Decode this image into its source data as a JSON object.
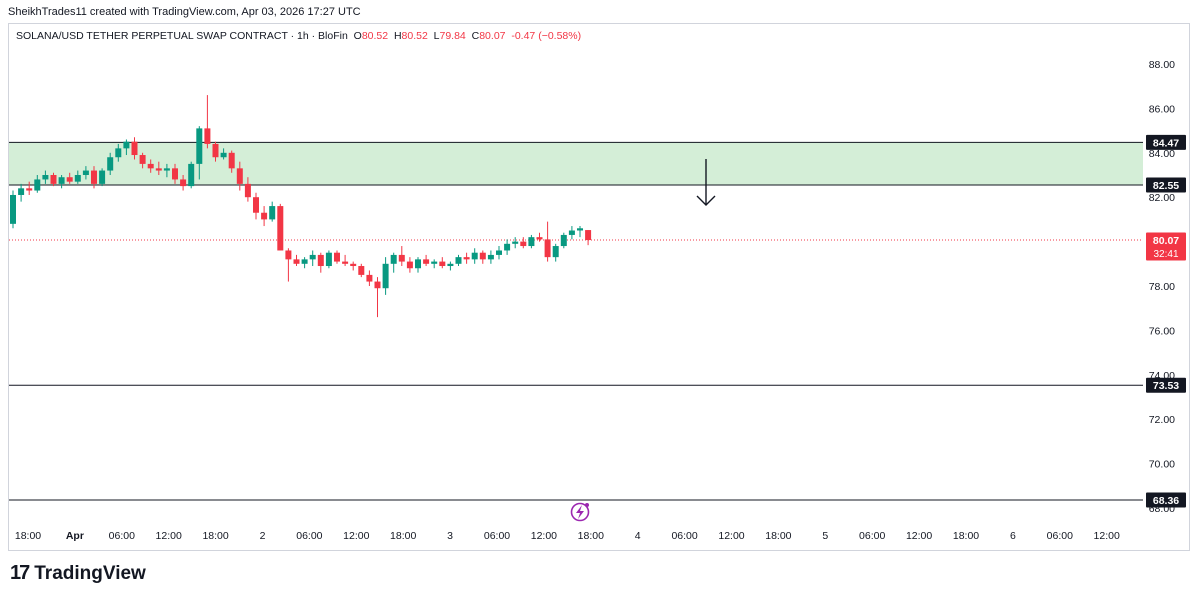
{
  "header": {
    "credit": "SheikhTrades11 created with TradingView.com, Apr 03, 2026 17:27 UTC"
  },
  "legend": {
    "symbol": "SOLANA/USD TETHER PERPETUAL SWAP CONTRACT · 1h · BloFin",
    "o_label": "O",
    "o": "80.52",
    "h_label": "H",
    "h": "80.52",
    "l_label": "L",
    "l": "79.84",
    "c_label": "C",
    "c": "80.07",
    "change": "-0.47 (−0.58%)"
  },
  "colors": {
    "up": "#089981",
    "down": "#f23645",
    "zone": "#d4eed7",
    "line": "#131722",
    "last": "#f23645",
    "icon": "#9c27b0"
  },
  "footer": {
    "brand_mark": "17",
    "brand_name": "TradingView"
  },
  "icons": {
    "flash": "flash-icon",
    "arrow": "down-arrow-icon"
  },
  "chart_data": {
    "type": "candlestick",
    "interval": "1h",
    "y_ticks": [
      "88.00",
      "86.00",
      "84.00",
      "82.00",
      "80.00",
      "78.00",
      "76.00",
      "74.00",
      "72.00",
      "70.00",
      "68.00"
    ],
    "x_ticks": [
      "18:00",
      "Apr",
      "06:00",
      "12:00",
      "18:00",
      "2",
      "06:00",
      "12:00",
      "18:00",
      "3",
      "06:00",
      "12:00",
      "18:00",
      "4",
      "06:00",
      "12:00",
      "18:00",
      "5",
      "06:00",
      "12:00",
      "18:00",
      "6",
      "06:00",
      "12:00"
    ],
    "ylim": [
      67.4,
      89.5
    ],
    "zone": {
      "top": 84.47,
      "bottom": 82.55,
      "top_label": "84.47",
      "bottom_label": "82.55"
    },
    "levels": [
      {
        "value": 73.53,
        "label": "73.53"
      },
      {
        "value": 68.36,
        "label": "68.36"
      }
    ],
    "last_price": {
      "value": 80.07,
      "label": "80.07",
      "countdown": "32:41"
    },
    "candles_ohlc": [
      [
        80.8,
        82.3,
        80.6,
        82.1
      ],
      [
        82.1,
        82.6,
        81.8,
        82.4
      ],
      [
        82.4,
        82.7,
        82.1,
        82.3
      ],
      [
        82.3,
        83.0,
        82.2,
        82.8
      ],
      [
        82.8,
        83.2,
        82.6,
        83.0
      ],
      [
        83.0,
        83.1,
        82.5,
        82.6
      ],
      [
        82.6,
        83.0,
        82.4,
        82.9
      ],
      [
        82.9,
        83.1,
        82.6,
        82.7
      ],
      [
        82.7,
        83.2,
        82.6,
        83.0
      ],
      [
        83.0,
        83.4,
        82.8,
        83.2
      ],
      [
        83.2,
        83.4,
        82.4,
        82.6
      ],
      [
        82.6,
        83.3,
        82.5,
        83.2
      ],
      [
        83.2,
        84.0,
        83.0,
        83.8
      ],
      [
        83.8,
        84.4,
        83.6,
        84.2
      ],
      [
        84.2,
        84.6,
        83.9,
        84.5
      ],
      [
        84.5,
        84.7,
        83.7,
        83.9
      ],
      [
        83.9,
        84.0,
        83.3,
        83.5
      ],
      [
        83.5,
        83.7,
        83.1,
        83.3
      ],
      [
        83.3,
        83.6,
        83.0,
        83.2
      ],
      [
        83.2,
        83.5,
        82.9,
        83.3
      ],
      [
        83.3,
        83.5,
        82.6,
        82.8
      ],
      [
        82.8,
        83.0,
        82.3,
        82.5
      ],
      [
        82.5,
        83.6,
        82.4,
        83.5
      ],
      [
        83.5,
        85.2,
        82.8,
        85.1
      ],
      [
        85.1,
        86.6,
        84.2,
        84.4
      ],
      [
        84.4,
        84.5,
        83.6,
        83.8
      ],
      [
        83.8,
        84.2,
        83.7,
        84.0
      ],
      [
        84.0,
        84.1,
        83.1,
        83.3
      ],
      [
        83.3,
        83.6,
        82.3,
        82.6
      ],
      [
        82.6,
        82.9,
        81.8,
        82.0
      ],
      [
        82.0,
        82.2,
        81.0,
        81.3
      ],
      [
        81.3,
        81.6,
        80.7,
        81.0
      ],
      [
        81.0,
        81.8,
        80.9,
        81.6
      ],
      [
        81.6,
        81.7,
        79.6,
        79.6
      ],
      [
        79.6,
        79.7,
        78.2,
        79.2
      ],
      [
        79.2,
        79.4,
        78.9,
        79.0
      ],
      [
        79.0,
        79.3,
        78.8,
        79.2
      ],
      [
        79.2,
        79.6,
        78.9,
        79.4
      ],
      [
        79.4,
        79.5,
        78.6,
        78.9
      ],
      [
        78.9,
        79.6,
        78.8,
        79.5
      ],
      [
        79.5,
        79.6,
        79.0,
        79.1
      ],
      [
        79.1,
        79.4,
        78.9,
        79.0
      ],
      [
        79.0,
        79.1,
        78.7,
        78.9
      ],
      [
        78.9,
        79.0,
        78.4,
        78.5
      ],
      [
        78.5,
        78.7,
        78.0,
        78.2
      ],
      [
        78.2,
        78.4,
        76.6,
        77.9
      ],
      [
        77.9,
        79.3,
        77.6,
        79.0
      ],
      [
        79.0,
        79.5,
        78.6,
        79.4
      ],
      [
        79.4,
        79.8,
        78.9,
        79.1
      ],
      [
        79.1,
        79.3,
        78.6,
        78.8
      ],
      [
        78.8,
        79.3,
        78.6,
        79.2
      ],
      [
        79.2,
        79.4,
        78.9,
        79.0
      ],
      [
        79.0,
        79.2,
        78.8,
        79.1
      ],
      [
        79.1,
        79.3,
        78.8,
        78.9
      ],
      [
        78.9,
        79.1,
        78.7,
        79.0
      ],
      [
        79.0,
        79.4,
        78.9,
        79.3
      ],
      [
        79.3,
        79.5,
        79.0,
        79.2
      ],
      [
        79.2,
        79.7,
        79.0,
        79.5
      ],
      [
        79.5,
        79.6,
        79.0,
        79.2
      ],
      [
        79.2,
        79.6,
        79.0,
        79.4
      ],
      [
        79.4,
        79.8,
        79.2,
        79.6
      ],
      [
        79.6,
        80.1,
        79.4,
        79.9
      ],
      [
        79.9,
        80.2,
        79.7,
        80.0
      ],
      [
        80.0,
        80.2,
        79.7,
        79.8
      ],
      [
        79.8,
        80.3,
        79.7,
        80.2
      ],
      [
        80.2,
        80.4,
        80.0,
        80.1
      ],
      [
        80.1,
        80.9,
        79.1,
        79.3
      ],
      [
        79.3,
        79.9,
        79.1,
        79.8
      ],
      [
        79.8,
        80.4,
        79.7,
        80.3
      ],
      [
        80.3,
        80.7,
        80.1,
        80.5
      ],
      [
        80.5,
        80.7,
        80.2,
        80.6
      ],
      [
        80.52,
        80.52,
        79.84,
        80.07
      ]
    ]
  }
}
